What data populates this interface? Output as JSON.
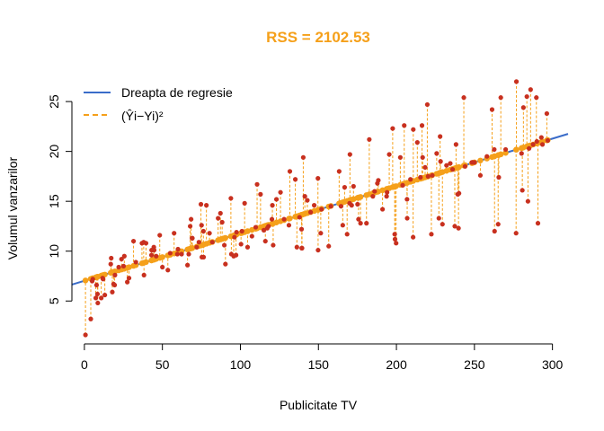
{
  "chart_data": {
    "type": "scatter",
    "title": "RSS = 2102.53",
    "xlabel": "Publicitate TV",
    "ylabel": "Volumul vanzarilor",
    "xlim": [
      -8,
      310
    ],
    "ylim": [
      0.7,
      27.8
    ],
    "x_ticks": [
      0,
      50,
      100,
      150,
      200,
      250,
      300
    ],
    "y_ticks": [
      5,
      10,
      15,
      20,
      25
    ],
    "grid": false,
    "legend_position": "top-left",
    "regression": {
      "intercept": 7.03,
      "slope": 0.0475
    },
    "colors": {
      "title": "#F5A01A",
      "points": "#C8301F",
      "regression_line": "#3A6CC9",
      "residuals": "#F5A01A"
    },
    "legend": [
      {
        "label": "Dreapta de regresie",
        "style": "solid",
        "color": "#3A6CC9"
      },
      {
        "label": "(Ŷi−Yi)²",
        "style": "dashed",
        "color": "#F5A01A"
      }
    ],
    "points": [
      [
        0.7,
        1.6
      ],
      [
        4.1,
        3.2
      ],
      [
        5.4,
        7.2
      ],
      [
        7.3,
        5.3
      ],
      [
        7.8,
        6.6
      ],
      [
        8.4,
        5.7
      ],
      [
        8.6,
        4.8
      ],
      [
        10.8,
        5.3
      ],
      [
        11.7,
        7.3
      ],
      [
        13.1,
        5.6
      ],
      [
        16.9,
        8.7
      ],
      [
        17.2,
        9.3
      ],
      [
        17.9,
        5.9
      ],
      [
        18.7,
        6.7
      ],
      [
        19.4,
        6.6
      ],
      [
        19.6,
        7.6
      ],
      [
        23.8,
        9.2
      ],
      [
        25.1,
        8.5
      ],
      [
        25.6,
        9.5
      ],
      [
        27.5,
        6.9
      ],
      [
        28.6,
        7.3
      ],
      [
        31.5,
        11.0
      ],
      [
        36.9,
        10.8
      ],
      [
        38.0,
        10.9
      ],
      [
        38.2,
        7.6
      ],
      [
        39.5,
        10.8
      ],
      [
        43.0,
        9.6
      ],
      [
        43.1,
        10.1
      ],
      [
        44.5,
        10.4
      ],
      [
        44.7,
        10.1
      ],
      [
        48.3,
        11.6
      ],
      [
        50.0,
        8.4
      ],
      [
        53.5,
        8.1
      ],
      [
        57.5,
        11.8
      ],
      [
        59.6,
        9.7
      ],
      [
        62.3,
        9.7
      ],
      [
        66.1,
        8.6
      ],
      [
        66.9,
        9.7
      ],
      [
        67.8,
        12.5
      ],
      [
        68.4,
        13.2
      ],
      [
        69.0,
        11.3
      ],
      [
        69.2,
        11.3
      ],
      [
        73.4,
        10.9
      ],
      [
        74.7,
        14.7
      ],
      [
        75.1,
        12.6
      ],
      [
        75.3,
        9.4
      ],
      [
        76.3,
        12.0
      ],
      [
        76.4,
        9.4
      ],
      [
        78.2,
        14.6
      ],
      [
        80.2,
        11.8
      ],
      [
        85.7,
        13.3
      ],
      [
        87.2,
        13.8
      ],
      [
        88.3,
        12.9
      ],
      [
        89.7,
        10.6
      ],
      [
        90.4,
        8.7
      ],
      [
        93.9,
        15.3
      ],
      [
        94.2,
        9.7
      ],
      [
        95.7,
        9.5
      ],
      [
        96.2,
        11.4
      ],
      [
        97.2,
        9.6
      ],
      [
        97.5,
        11.9
      ],
      [
        100.4,
        10.7
      ],
      [
        102.7,
        14.8
      ],
      [
        104.6,
        10.4
      ],
      [
        107.4,
        11.5
      ],
      [
        109.8,
        12.4
      ],
      [
        110.7,
        16.7
      ],
      [
        112.9,
        15.7
      ],
      [
        116.0,
        11.0
      ],
      [
        117.2,
        12.3
      ],
      [
        120.2,
        13.2
      ],
      [
        120.5,
        14.6
      ],
      [
        121.0,
        10.6
      ],
      [
        123.1,
        15.2
      ],
      [
        125.7,
        15.9
      ],
      [
        131.1,
        12.6
      ],
      [
        131.7,
        18.0
      ],
      [
        135.2,
        17.2
      ],
      [
        136.2,
        10.4
      ],
      [
        137.9,
        13.4
      ],
      [
        139.2,
        12.2
      ],
      [
        139.3,
        10.3
      ],
      [
        139.5,
        10.3
      ],
      [
        140.3,
        19.4
      ],
      [
        141.3,
        15.5
      ],
      [
        142.9,
        15.1
      ],
      [
        147.3,
        14.6
      ],
      [
        149.7,
        17.3
      ],
      [
        149.8,
        10.1
      ],
      [
        151.5,
        11.8
      ],
      [
        156.6,
        10.5
      ],
      [
        163.3,
        18.0
      ],
      [
        164.5,
        14.5
      ],
      [
        165.6,
        12.6
      ],
      [
        166.8,
        16.4
      ],
      [
        168.4,
        11.7
      ],
      [
        170.2,
        19.7
      ],
      [
        171.3,
        14.6
      ],
      [
        172.5,
        16.5
      ],
      [
        175.1,
        14.7
      ],
      [
        175.7,
        13.2
      ],
      [
        177.0,
        12.8
      ],
      [
        180.8,
        12.8
      ],
      [
        182.6,
        21.2
      ],
      [
        184.9,
        15.5
      ],
      [
        187.8,
        16.8
      ],
      [
        188.4,
        17.1
      ],
      [
        191.1,
        14.2
      ],
      [
        193.7,
        15.5
      ],
      [
        195.4,
        19.7
      ],
      [
        197.6,
        22.3
      ],
      [
        198.9,
        11.7
      ],
      [
        199.1,
        11.2
      ],
      [
        199.8,
        10.8
      ],
      [
        202.5,
        19.4
      ],
      [
        205.0,
        22.6
      ],
      [
        206.8,
        15.2
      ],
      [
        206.9,
        13.3
      ],
      [
        210.7,
        11.4
      ],
      [
        210.8,
        22.2
      ],
      [
        213.4,
        20.9
      ],
      [
        215.4,
        17.4
      ],
      [
        216.4,
        22.6
      ],
      [
        216.8,
        19.4
      ],
      [
        218.4,
        18.4
      ],
      [
        219.8,
        24.7
      ],
      [
        220.3,
        17.5
      ],
      [
        222.4,
        11.7
      ],
      [
        225.8,
        19.8
      ],
      [
        227.2,
        13.3
      ],
      [
        228.0,
        21.5
      ],
      [
        228.3,
        19.0
      ],
      [
        229.5,
        12.7
      ],
      [
        232.1,
        18.6
      ],
      [
        234.5,
        18.8
      ],
      [
        237.4,
        12.5
      ],
      [
        238.2,
        20.7
      ],
      [
        239.3,
        15.7
      ],
      [
        239.8,
        12.3
      ],
      [
        240.1,
        15.8
      ],
      [
        243.2,
        25.4
      ],
      [
        248.4,
        18.9
      ],
      [
        248.8,
        18.9
      ],
      [
        253.8,
        17.6
      ],
      [
        261.3,
        24.2
      ],
      [
        262.7,
        20.2
      ],
      [
        262.9,
        12.0
      ],
      [
        265.2,
        12.7
      ],
      [
        265.6,
        17.4
      ],
      [
        266.9,
        25.4
      ],
      [
        276.7,
        11.8
      ],
      [
        276.9,
        27.0
      ],
      [
        280.2,
        19.8
      ],
      [
        280.7,
        16.1
      ],
      [
        281.4,
        24.4
      ],
      [
        283.6,
        25.5
      ],
      [
        284.3,
        15.0
      ],
      [
        286.0,
        26.2
      ],
      [
        287.6,
        20.7
      ],
      [
        289.7,
        25.4
      ],
      [
        290.7,
        12.8
      ],
      [
        292.9,
        21.4
      ],
      [
        293.6,
        20.7
      ],
      [
        296.4,
        23.8
      ],
      [
        5.0,
        7.0
      ],
      [
        12.0,
        7.2
      ],
      [
        22.0,
        8.4
      ],
      [
        33.0,
        8.9
      ],
      [
        46.0,
        9.5
      ],
      [
        55.0,
        9.8
      ],
      [
        72.0,
        10.4
      ],
      [
        82.0,
        10.9
      ],
      [
        101.0,
        12.0
      ],
      [
        115.0,
        12.1
      ],
      [
        128.0,
        13.2
      ],
      [
        145.0,
        13.9
      ],
      [
        158.0,
        14.5
      ],
      [
        170.0,
        14.8
      ],
      [
        186.0,
        16.0
      ],
      [
        194.0,
        15.9
      ],
      [
        209.0,
        17.2
      ],
      [
        223.0,
        17.6
      ],
      [
        236.0,
        18.2
      ],
      [
        250.0,
        18.9
      ],
      [
        258.0,
        19.5
      ],
      [
        270.0,
        20.2
      ],
      [
        285.0,
        20.3
      ],
      [
        297.0,
        21.1
      ],
      [
        60.0,
        10.2
      ],
      [
        118.0,
        12.5
      ],
      [
        152.0,
        14.2
      ],
      [
        204.0,
        16.6
      ],
      [
        244.0,
        18.5
      ],
      [
        290.0,
        21.0
      ]
    ]
  }
}
